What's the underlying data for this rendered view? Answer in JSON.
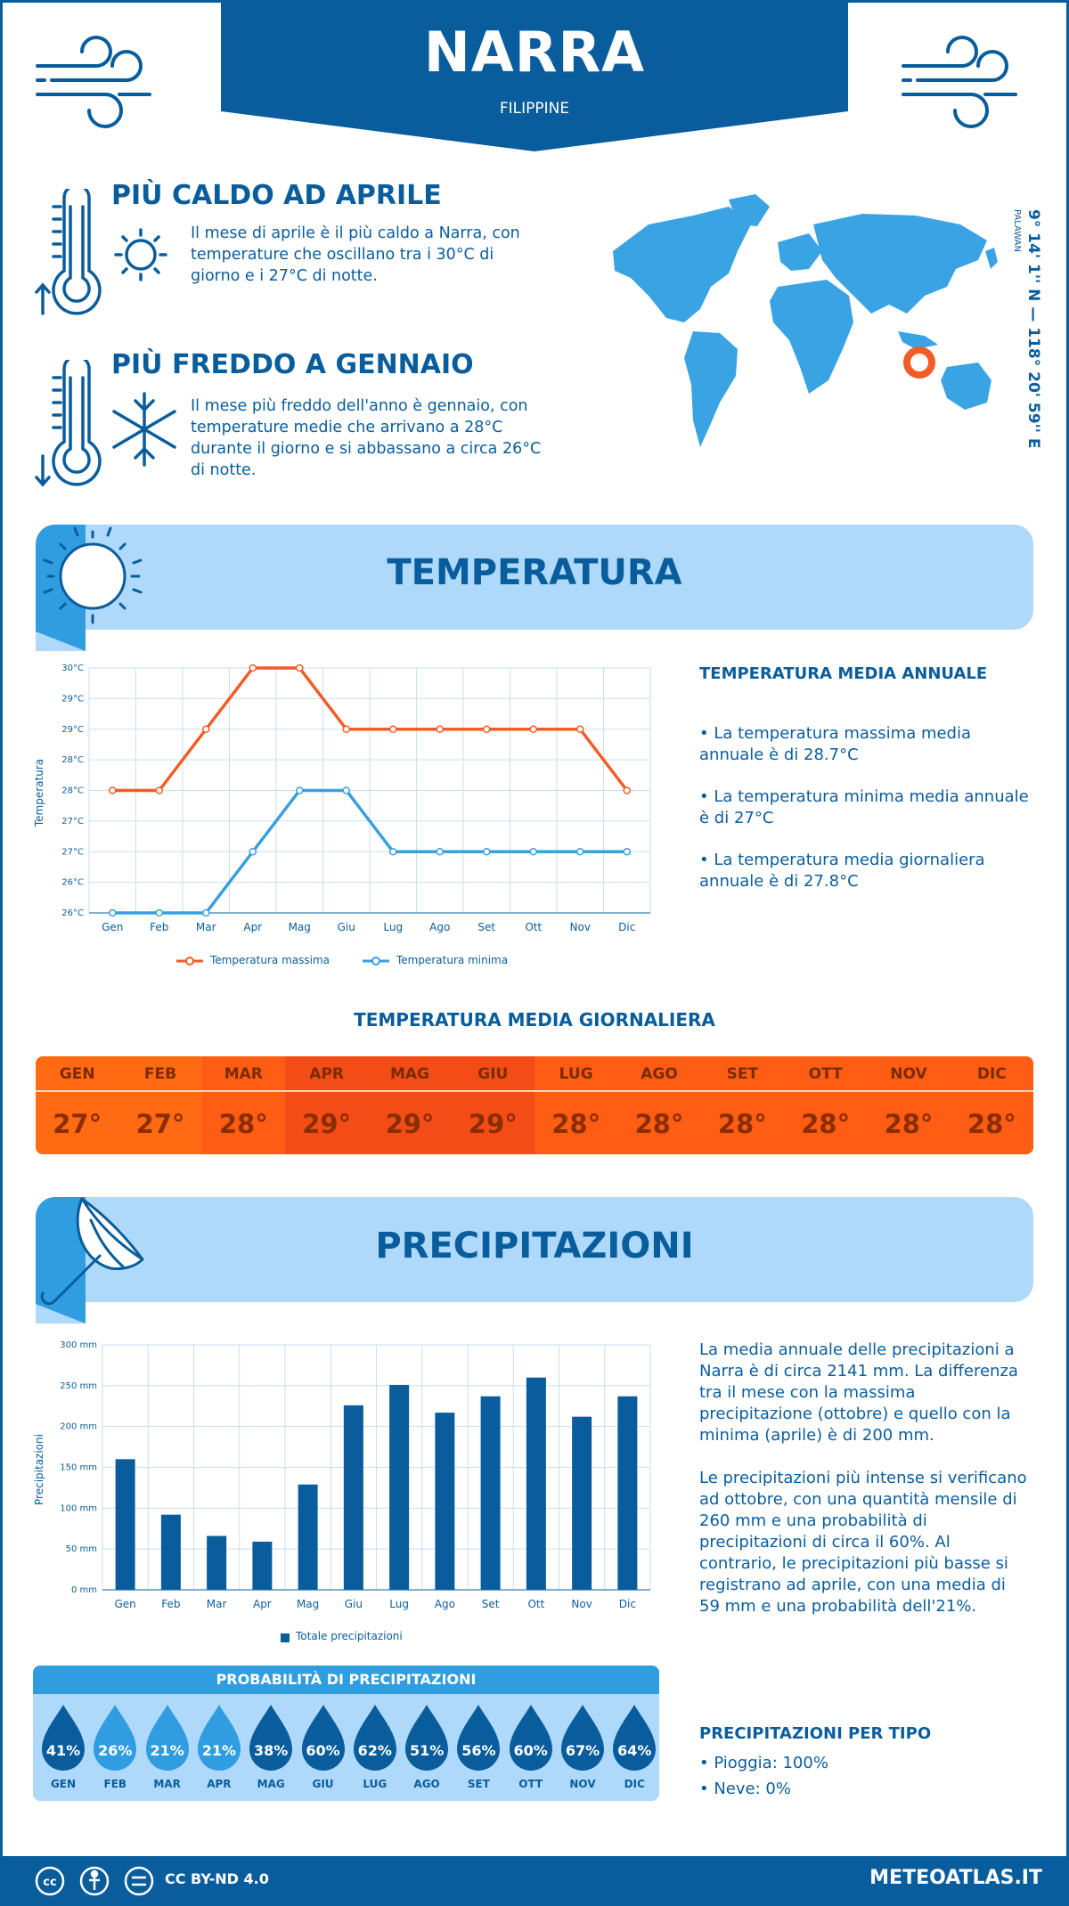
{
  "header": {
    "title": "NARRA",
    "country": "FILIPPINE"
  },
  "hottest": {
    "title": "PIÙ CALDO AD APRILE",
    "text": "Il mese di aprile è il più caldo a Narra, con temperature che oscillano tra i 30°C di giorno e i 27°C di notte."
  },
  "coldest": {
    "title": "PIÙ FREDDO A GENNAIO",
    "text": "Il mese più freddo dell'anno è gennaio, con temperature medie che arrivano a 28°C durante il giorno e si abbassano a circa 26°C di notte."
  },
  "location": {
    "coords": "9° 14' 1'' N — 118° 20' 59'' E",
    "region": "PALAWAN"
  },
  "temperature": {
    "section_title": "TEMPERATURA",
    "side_title": "TEMPERATURA MEDIA ANNUALE",
    "bullets": [
      "• La temperatura massima media annuale è di 28.7°C",
      "• La temperatura minima media annuale è di 27°C",
      "• La temperatura media giornaliera annuale è di 27.8°C"
    ],
    "legend_max": "Temperatura massima",
    "legend_min": "Temperatura minima",
    "daily_title": "TEMPERATURA MEDIA GIORNALIERA",
    "daily": [
      {
        "m": "GEN",
        "v": "27°"
      },
      {
        "m": "FEB",
        "v": "27°"
      },
      {
        "m": "MAR",
        "v": "28°"
      },
      {
        "m": "APR",
        "v": "29°"
      },
      {
        "m": "MAG",
        "v": "29°"
      },
      {
        "m": "GIU",
        "v": "29°"
      },
      {
        "m": "LUG",
        "v": "28°"
      },
      {
        "m": "AGO",
        "v": "28°"
      },
      {
        "m": "SET",
        "v": "28°"
      },
      {
        "m": "OTT",
        "v": "28°"
      },
      {
        "m": "NOV",
        "v": "28°"
      },
      {
        "m": "DIC",
        "v": "28°"
      }
    ],
    "colors": {
      "max": "#f25c26",
      "min": "#3a9fdc"
    }
  },
  "precip": {
    "section_title": "PRECIPITAZIONI",
    "para1": "La media annuale delle precipitazioni a Narra è di circa 2141 mm. La differenza tra il mese con la massima precipitazione (ottobre) e quello con la minima (aprile) è di 200 mm.",
    "para2": "Le precipitazioni più intense si verificano ad ottobre, con una quantità mensile di 260 mm e una probabilità di precipitazioni di circa il 60%. Al contrario, le precipitazioni più basse si registrano ad aprile, con una media di 59 mm e una probabilità dell'21%.",
    "legend": "Totale precipitazioni",
    "prob_title": "PROBABILITÀ DI PRECIPITAZIONI",
    "prob": [
      {
        "m": "GEN",
        "v": "41%"
      },
      {
        "m": "FEB",
        "v": "26%"
      },
      {
        "m": "MAR",
        "v": "21%"
      },
      {
        "m": "APR",
        "v": "21%"
      },
      {
        "m": "MAG",
        "v": "38%"
      },
      {
        "m": "GIU",
        "v": "60%"
      },
      {
        "m": "LUG",
        "v": "62%"
      },
      {
        "m": "AGO",
        "v": "51%"
      },
      {
        "m": "SET",
        "v": "56%"
      },
      {
        "m": "OTT",
        "v": "60%"
      },
      {
        "m": "NOV",
        "v": "67%"
      },
      {
        "m": "DIC",
        "v": "64%"
      }
    ],
    "type_title": "PRECIPITAZIONI PER TIPO",
    "type_rain": "• Pioggia: 100%",
    "type_snow": "• Neve: 0%"
  },
  "footer": {
    "license": "CC BY-ND 4.0",
    "site": "METEOATLAS.IT"
  },
  "chart_data": [
    {
      "type": "line",
      "title": "",
      "ylabel": "Temperatura",
      "categories": [
        "Gen",
        "Feb",
        "Mar",
        "Apr",
        "Mag",
        "Giu",
        "Lug",
        "Ago",
        "Set",
        "Ott",
        "Nov",
        "Dic"
      ],
      "yticks": [
        "26°C",
        "26°C",
        "27°C",
        "27°C",
        "28°C",
        "28°C",
        "29°C",
        "29°C",
        "30°C"
      ],
      "ylim": [
        26,
        30
      ],
      "series": [
        {
          "name": "Temperatura massima",
          "values": [
            28,
            28,
            29,
            30,
            30,
            29,
            29,
            29,
            29,
            29,
            29,
            28
          ]
        },
        {
          "name": "Temperatura minima",
          "values": [
            26,
            26,
            26,
            27,
            28,
            28,
            27,
            27,
            27,
            27,
            27,
            27
          ]
        }
      ]
    },
    {
      "type": "bar",
      "title": "",
      "ylabel": "Precipitazioni",
      "categories": [
        "Gen",
        "Feb",
        "Mar",
        "Apr",
        "Mag",
        "Giu",
        "Lug",
        "Ago",
        "Set",
        "Ott",
        "Nov",
        "Dic"
      ],
      "yticks": [
        "0 mm",
        "50 mm",
        "100 mm",
        "150 mm",
        "200 mm",
        "250 mm",
        "300 mm"
      ],
      "ylim": [
        0,
        300
      ],
      "series": [
        {
          "name": "Totale precipitazioni",
          "values": [
            160,
            92,
            66,
            59,
            129,
            226,
            251,
            217,
            237,
            260,
            212,
            237
          ]
        }
      ]
    }
  ]
}
